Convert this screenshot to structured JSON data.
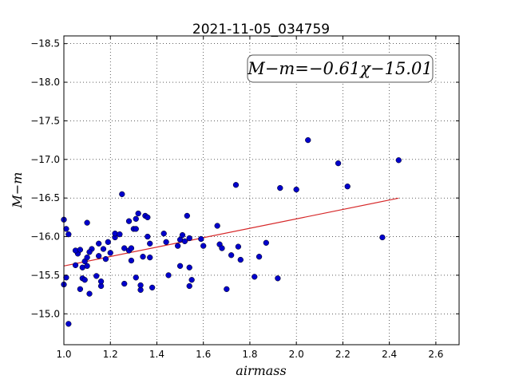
{
  "chart_data": {
    "type": "scatter",
    "title": "2021-11-05_034759",
    "xlabel": "airmass",
    "ylabel": "M−m",
    "xlim": [
      1.0,
      2.7
    ],
    "ylim": [
      -18.6,
      -14.6
    ],
    "y_inverted": true,
    "grid": true,
    "xticks": [
      1.0,
      1.2,
      1.4,
      1.6,
      1.8,
      2.0,
      2.2,
      2.4,
      2.6
    ],
    "xtick_labels": [
      "1.0",
      "1.2",
      "1.4",
      "1.6",
      "1.8",
      "2.0",
      "2.2",
      "2.4",
      "2.6"
    ],
    "yticks": [
      -15.0,
      -15.5,
      -16.0,
      -16.5,
      -17.0,
      -17.5,
      -18.0,
      -18.5
    ],
    "ytick_labels": [
      "−15.0",
      "−15.5",
      "−16.0",
      "−16.5",
      "−17.0",
      "−17.5",
      "−18.0",
      "−18.5"
    ],
    "annotation": "M−m=−0.61χ−15.01",
    "fit": {
      "slope": -0.61,
      "intercept": -15.01,
      "x_range": [
        1.0,
        2.44
      ],
      "color": "#d62728"
    },
    "point_color": "#0000cc",
    "points": [
      [
        1.02,
        -14.87
      ],
      [
        1.0,
        -15.38
      ],
      [
        1.01,
        -15.47
      ],
      [
        1.0,
        -16.22
      ],
      [
        1.01,
        -16.1
      ],
      [
        1.02,
        -16.03
      ],
      [
        1.05,
        -15.63
      ],
      [
        1.06,
        -15.78
      ],
      [
        1.05,
        -15.82
      ],
      [
        1.07,
        -15.83
      ],
      [
        1.07,
        -15.32
      ],
      [
        1.08,
        -15.46
      ],
      [
        1.09,
        -15.44
      ],
      [
        1.08,
        -15.6
      ],
      [
        1.09,
        -15.68
      ],
      [
        1.1,
        -15.62
      ],
      [
        1.1,
        -15.73
      ],
      [
        1.11,
        -15.26
      ],
      [
        1.12,
        -15.84
      ],
      [
        1.11,
        -15.8
      ],
      [
        1.14,
        -15.49
      ],
      [
        1.15,
        -15.91
      ],
      [
        1.15,
        -15.75
      ],
      [
        1.16,
        -15.36
      ],
      [
        1.16,
        -15.42
      ],
      [
        1.17,
        -15.84
      ],
      [
        1.18,
        -15.71
      ],
      [
        1.19,
        -15.93
      ],
      [
        1.2,
        -15.79
      ],
      [
        1.22,
        -15.99
      ],
      [
        1.22,
        -16.04
      ],
      [
        1.24,
        -16.03
      ],
      [
        1.25,
        -16.55
      ],
      [
        1.26,
        -15.39
      ],
      [
        1.26,
        -15.85
      ],
      [
        1.28,
        -15.82
      ],
      [
        1.28,
        -16.2
      ],
      [
        1.29,
        -15.69
      ],
      [
        1.29,
        -15.85
      ],
      [
        1.3,
        -16.1
      ],
      [
        1.31,
        -15.47
      ],
      [
        1.31,
        -16.1
      ],
      [
        1.31,
        -16.23
      ],
      [
        1.32,
        -16.3
      ],
      [
        1.33,
        -15.31
      ],
      [
        1.33,
        -15.37
      ],
      [
        1.34,
        -15.74
      ],
      [
        1.35,
        -16.27
      ],
      [
        1.36,
        -16.0
      ],
      [
        1.36,
        -16.25
      ],
      [
        1.37,
        -15.91
      ],
      [
        1.37,
        -15.73
      ],
      [
        1.38,
        -15.34
      ],
      [
        1.1,
        -16.18
      ],
      [
        1.43,
        -16.04
      ],
      [
        1.44,
        -15.93
      ],
      [
        1.45,
        -15.5
      ],
      [
        1.49,
        -15.88
      ],
      [
        1.5,
        -15.62
      ],
      [
        1.5,
        -15.96
      ],
      [
        1.51,
        -16.02
      ],
      [
        1.52,
        -15.94
      ],
      [
        1.53,
        -16.27
      ],
      [
        1.54,
        -15.36
      ],
      [
        1.54,
        -15.98
      ],
      [
        1.54,
        -15.6
      ],
      [
        1.55,
        -15.44
      ],
      [
        1.59,
        -15.97
      ],
      [
        1.6,
        -15.88
      ],
      [
        1.66,
        -16.14
      ],
      [
        1.67,
        -15.9
      ],
      [
        1.68,
        -15.85
      ],
      [
        1.7,
        -15.32
      ],
      [
        1.72,
        -15.76
      ],
      [
        1.74,
        -16.67
      ],
      [
        1.75,
        -15.87
      ],
      [
        1.76,
        -15.7
      ],
      [
        1.82,
        -15.48
      ],
      [
        1.84,
        -15.74
      ],
      [
        1.87,
        -15.92
      ],
      [
        1.92,
        -15.46
      ],
      [
        1.93,
        -16.63
      ],
      [
        2.0,
        -16.61
      ],
      [
        2.05,
        -17.25
      ],
      [
        2.18,
        -16.95
      ],
      [
        2.22,
        -16.65
      ],
      [
        2.37,
        -15.99
      ],
      [
        2.44,
        -16.99
      ]
    ]
  }
}
